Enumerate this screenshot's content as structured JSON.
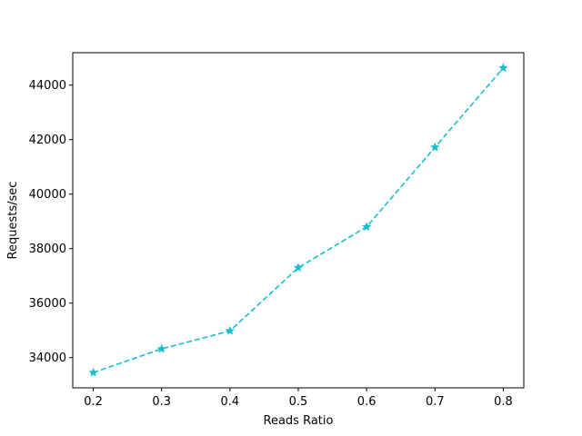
{
  "chart_data": {
    "type": "line",
    "title": "",
    "xlabel": "Reads Ratio",
    "ylabel": "Requests/sec",
    "x": [
      0.2,
      0.3,
      0.4,
      0.5,
      0.6,
      0.7,
      0.8
    ],
    "series": [
      {
        "values": [
          33450,
          34320,
          34980,
          37300,
          38800,
          41720,
          44630
        ],
        "color": "#17becf",
        "line_style": "dashed",
        "marker": "star"
      }
    ],
    "xticks": [
      0.2,
      0.3,
      0.4,
      0.5,
      0.6,
      0.7,
      0.8
    ],
    "xtick_labels": [
      "0.2",
      "0.3",
      "0.4",
      "0.5",
      "0.6",
      "0.7",
      "0.8"
    ],
    "yticks": [
      34000,
      36000,
      38000,
      40000,
      42000,
      44000
    ],
    "ytick_labels": [
      "34000",
      "36000",
      "38000",
      "40000",
      "42000",
      "44000"
    ],
    "xlim": [
      0.17,
      0.83
    ],
    "ylim": [
      32890,
      45190
    ],
    "grid": false,
    "legend": "none"
  }
}
